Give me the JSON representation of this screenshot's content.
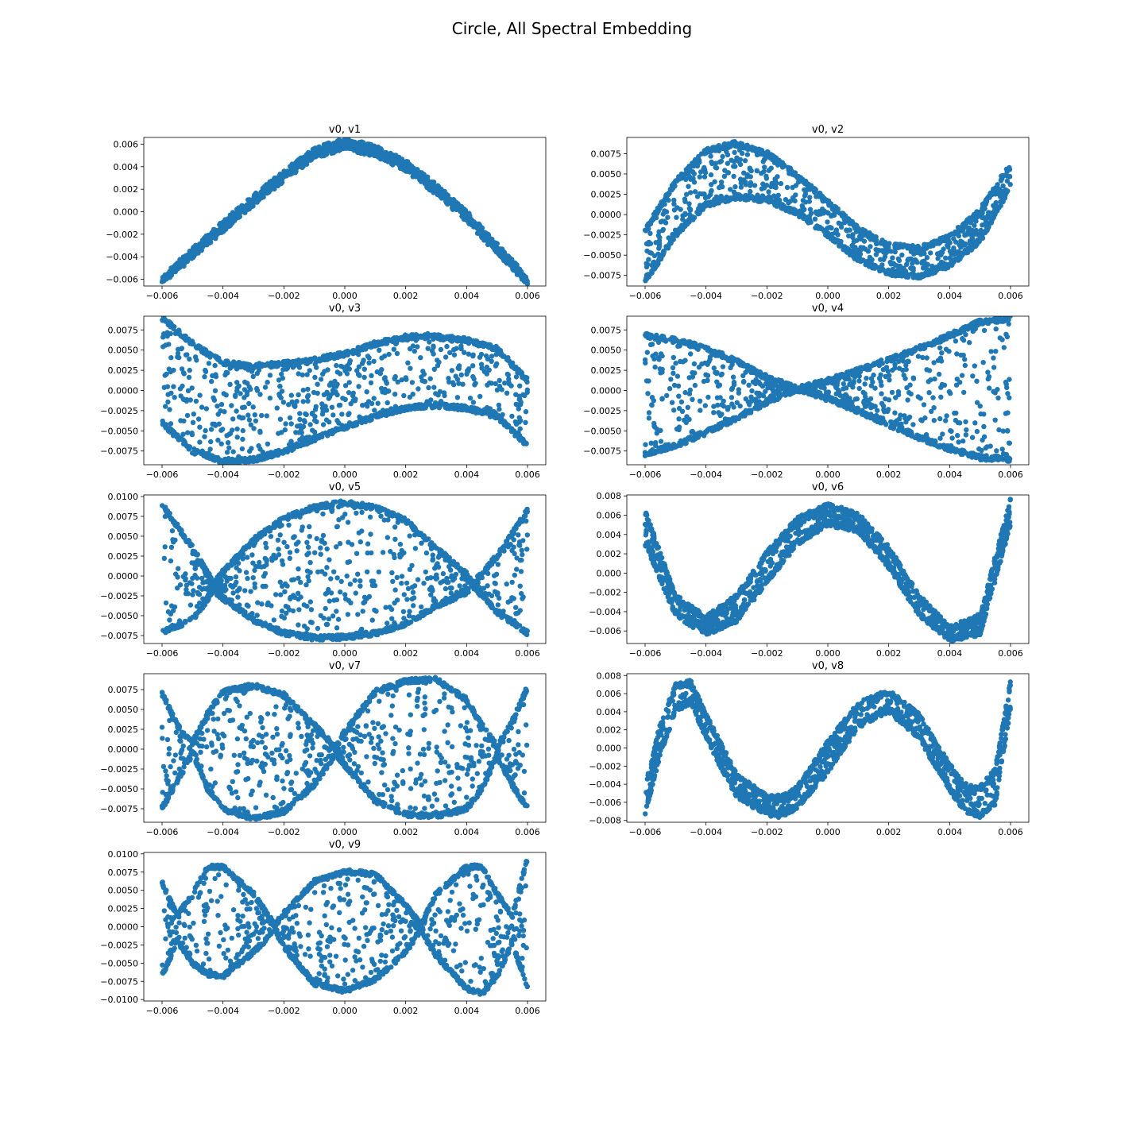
{
  "figure_title": "Circle, All Spectral Embedding",
  "colors": {
    "points": "#1f77b4",
    "axes": "#000000",
    "background": "#ffffff"
  },
  "chart_data": [
    {
      "type": "scatter",
      "title": "v0, v1",
      "xlabel": "",
      "ylabel": "",
      "xlim": [
        -0.0066,
        0.0066
      ],
      "ylim": [
        -0.0066,
        0.0066
      ],
      "xticks": [
        -0.006,
        -0.004,
        -0.002,
        0.0,
        0.002,
        0.004,
        0.006
      ],
      "xtick_labels": [
        "−0.006",
        "−0.004",
        "−0.002",
        "0.000",
        "0.002",
        "0.004",
        "0.006"
      ],
      "yticks": [
        0.006,
        0.004,
        0.002,
        0.0,
        -0.002,
        -0.004,
        -0.006
      ],
      "ytick_labels": [
        "0.006",
        "0.004",
        "0.002",
        "0.000",
        "−0.002",
        "−0.004",
        "−0.006"
      ],
      "curve": {
        "x": [
          -0.006,
          -0.005,
          -0.004,
          -0.003,
          -0.002,
          -0.001,
          0.0,
          0.001,
          0.002,
          0.003,
          0.004,
          0.005,
          0.006
        ],
        "upper": [
          -0.006,
          -0.0035,
          -0.0011,
          0.0012,
          0.0034,
          0.0054,
          0.0063,
          0.0056,
          0.0043,
          0.0022,
          -0.0002,
          -0.0031,
          -0.006
        ],
        "lower": [
          -0.0062,
          -0.0039,
          -0.0015,
          0.0008,
          0.003,
          0.005,
          0.0058,
          0.0052,
          0.0039,
          0.0018,
          -0.0006,
          -0.0035,
          -0.0062
        ]
      },
      "grid": false,
      "legend": "none"
    },
    {
      "type": "scatter",
      "title": "v0, v2",
      "xlabel": "",
      "ylabel": "",
      "xlim": [
        -0.0066,
        0.0066
      ],
      "ylim": [
        -0.0088,
        0.0095
      ],
      "xticks": [
        -0.006,
        -0.004,
        -0.002,
        0.0,
        0.002,
        0.004,
        0.006
      ],
      "xtick_labels": [
        "−0.006",
        "−0.004",
        "−0.002",
        "0.000",
        "0.002",
        "0.004",
        "0.006"
      ],
      "yticks": [
        0.0075,
        0.005,
        0.0025,
        0.0,
        -0.0025,
        -0.005,
        -0.0075
      ],
      "ytick_labels": [
        "0.0075",
        "0.0050",
        "0.0025",
        "0.0000",
        "−0.0025",
        "−0.0050",
        "−0.0075"
      ],
      "curve": {
        "x": [
          -0.006,
          -0.005,
          -0.004,
          -0.003,
          -0.002,
          -0.001,
          0.0,
          0.001,
          0.002,
          0.003,
          0.004,
          0.005,
          0.006
        ],
        "upper": [
          -0.002,
          0.004,
          0.0078,
          0.0088,
          0.0075,
          0.0048,
          0.0015,
          -0.0018,
          -0.0038,
          -0.0042,
          -0.0028,
          0.0005,
          0.0062
        ],
        "lower": [
          -0.0082,
          -0.0025,
          0.0012,
          0.0022,
          0.0018,
          0.0002,
          -0.0025,
          -0.0055,
          -0.0072,
          -0.0076,
          -0.0062,
          -0.0032,
          0.0035
        ]
      },
      "grid": false,
      "legend": "none"
    },
    {
      "type": "scatter",
      "title": "v0, v3",
      "xlabel": "",
      "ylabel": "",
      "xlim": [
        -0.0066,
        0.0066
      ],
      "ylim": [
        -0.0092,
        0.0092
      ],
      "xticks": [
        -0.006,
        -0.004,
        -0.002,
        0.0,
        0.002,
        0.004,
        0.006
      ],
      "xtick_labels": [
        "−0.006",
        "−0.004",
        "−0.002",
        "0.000",
        "0.002",
        "0.004",
        "0.006"
      ],
      "yticks": [
        0.0075,
        0.005,
        0.0025,
        0.0,
        -0.0025,
        -0.005,
        -0.0075
      ],
      "ytick_labels": [
        "0.0075",
        "0.0050",
        "0.0025",
        "0.0000",
        "−0.0025",
        "−0.0050",
        "−0.0075"
      ],
      "curve": {
        "x": [
          -0.006,
          -0.005,
          -0.004,
          -0.003,
          -0.002,
          -0.001,
          0.0,
          0.001,
          0.002,
          0.003,
          0.004,
          0.005,
          0.006
        ],
        "upper": [
          0.009,
          0.0058,
          0.0034,
          0.003,
          0.0033,
          0.0038,
          0.0045,
          0.0058,
          0.0066,
          0.0068,
          0.0062,
          0.0052,
          0.0012
        ],
        "lower": [
          -0.004,
          -0.0075,
          -0.0088,
          -0.0086,
          -0.0075,
          -0.006,
          -0.0045,
          -0.0032,
          -0.0022,
          -0.0018,
          -0.0022,
          -0.0032,
          -0.0068
        ]
      },
      "grid": false,
      "legend": "none"
    },
    {
      "type": "scatter",
      "title": "v0, v4",
      "xlabel": "",
      "ylabel": "",
      "xlim": [
        -0.0066,
        0.0066
      ],
      "ylim": [
        -0.0092,
        0.0092
      ],
      "xticks": [
        -0.006,
        -0.004,
        -0.002,
        0.0,
        0.002,
        0.004,
        0.006
      ],
      "xtick_labels": [
        "−0.006",
        "−0.004",
        "−0.002",
        "0.000",
        "0.002",
        "0.004",
        "0.006"
      ],
      "yticks": [
        0.0075,
        0.005,
        0.0025,
        0.0,
        -0.0025,
        -0.005,
        -0.0075
      ],
      "ytick_labels": [
        "0.0075",
        "0.0050",
        "0.0025",
        "0.0000",
        "−0.0025",
        "−0.0050",
        "−0.0075"
      ],
      "curve": {
        "x": [
          -0.006,
          -0.005,
          -0.004,
          -0.003,
          -0.002,
          -0.001,
          0.0,
          0.001,
          0.002,
          0.003,
          0.004,
          0.005,
          0.006
        ],
        "upper": [
          0.0068,
          0.0062,
          0.0052,
          0.0036,
          0.0016,
          0.0002,
          0.0012,
          0.0025,
          0.0038,
          0.0052,
          0.0068,
          0.0085,
          0.0089
        ],
        "lower": [
          -0.0078,
          -0.0068,
          -0.0052,
          -0.0034,
          -0.0014,
          0.0001,
          -0.001,
          -0.0025,
          -0.0042,
          -0.0058,
          -0.0072,
          -0.0083,
          -0.0085
        ]
      },
      "grid": false,
      "legend": "none"
    },
    {
      "type": "scatter",
      "title": "v0, v5",
      "xlabel": "",
      "ylabel": "",
      "xlim": [
        -0.0066,
        0.0066
      ],
      "ylim": [
        -0.0085,
        0.0102
      ],
      "xticks": [
        -0.006,
        -0.004,
        -0.002,
        0.0,
        0.002,
        0.004,
        0.006
      ],
      "xtick_labels": [
        "−0.006",
        "−0.004",
        "−0.002",
        "0.000",
        "0.002",
        "0.004",
        "0.006"
      ],
      "yticks": [
        0.01,
        0.0075,
        0.005,
        0.0025,
        0.0,
        -0.0025,
        -0.005,
        -0.0075
      ],
      "ytick_labels": [
        "0.0100",
        "0.0075",
        "0.0050",
        "0.0025",
        "0.0000",
        "−0.0025",
        "−0.0050",
        "−0.0075"
      ],
      "curve": {
        "x": [
          -0.006,
          -0.005,
          -0.0043,
          -0.004,
          -0.003,
          -0.002,
          -0.001,
          0.0,
          0.001,
          0.002,
          0.003,
          0.004,
          0.0042,
          0.005,
          0.006
        ],
        "upper": [
          0.009,
          0.0035,
          -0.001,
          0.0005,
          0.0045,
          0.0072,
          0.0087,
          0.0092,
          0.0086,
          0.007,
          0.0035,
          0.0002,
          -0.001,
          0.0025,
          0.0082
        ],
        "lower": [
          -0.007,
          -0.0055,
          -0.0018,
          -0.0028,
          -0.0055,
          -0.0072,
          -0.0078,
          -0.0077,
          -0.0072,
          -0.006,
          -0.0038,
          -0.002,
          -0.0012,
          -0.0045,
          -0.0072
        ]
      },
      "grid": false,
      "legend": "none"
    },
    {
      "type": "scatter",
      "title": "v0, v6",
      "xlabel": "",
      "ylabel": "",
      "xlim": [
        -0.0066,
        0.0066
      ],
      "ylim": [
        -0.0073,
        0.0081
      ],
      "xticks": [
        -0.006,
        -0.004,
        -0.002,
        0.0,
        0.002,
        0.004,
        0.006
      ],
      "xtick_labels": [
        "−0.006",
        "−0.004",
        "−0.002",
        "0.000",
        "0.002",
        "0.004",
        "0.006"
      ],
      "yticks": [
        0.008,
        0.006,
        0.004,
        0.002,
        0.0,
        -0.002,
        -0.004,
        -0.006
      ],
      "ytick_labels": [
        "0.008",
        "0.006",
        "0.004",
        "0.002",
        "0.000",
        "−0.002",
        "−0.004",
        "−0.006"
      ],
      "curve": {
        "x": [
          -0.006,
          -0.005,
          -0.004,
          -0.003,
          -0.002,
          -0.001,
          0.0,
          0.001,
          0.002,
          0.003,
          0.004,
          0.005,
          0.006
        ],
        "upper": [
          0.0063,
          -0.0025,
          -0.0047,
          -0.0025,
          0.002,
          0.0055,
          0.007,
          0.006,
          0.0025,
          -0.0025,
          -0.0058,
          -0.0045,
          0.0075
        ],
        "lower": [
          0.0032,
          -0.0042,
          -0.0062,
          -0.0048,
          -0.0008,
          0.0032,
          0.0052,
          0.0045,
          0.0008,
          -0.0042,
          -0.0068,
          -0.0062,
          0.0052
        ]
      },
      "grid": false,
      "legend": "none"
    },
    {
      "type": "scatter",
      "title": "v0, v7",
      "xlabel": "",
      "ylabel": "",
      "xlim": [
        -0.0066,
        0.0066
      ],
      "ylim": [
        -0.0092,
        0.0095
      ],
      "xticks": [
        -0.006,
        -0.004,
        -0.002,
        0.0,
        0.002,
        0.004,
        0.006
      ],
      "xtick_labels": [
        "−0.006",
        "−0.004",
        "−0.002",
        "0.000",
        "0.002",
        "0.004",
        "0.006"
      ],
      "yticks": [
        0.0075,
        0.005,
        0.0025,
        0.0,
        -0.0025,
        -0.005,
        -0.0075
      ],
      "ytick_labels": [
        "0.0075",
        "0.0050",
        "0.0025",
        "0.0000",
        "−0.0025",
        "−0.0050",
        "−0.0075"
      ],
      "curve": {
        "x": [
          -0.006,
          -0.0055,
          -0.005,
          -0.0045,
          -0.004,
          -0.003,
          -0.002,
          -0.001,
          -0.0003,
          0.0,
          0.001,
          0.002,
          0.003,
          0.004,
          0.0045,
          0.005,
          0.0055,
          0.006
        ],
        "upper": [
          0.007,
          0.003,
          0.0008,
          0.0045,
          0.0072,
          0.008,
          0.0068,
          0.003,
          0.0002,
          0.0022,
          0.0072,
          0.0086,
          0.0088,
          0.0062,
          0.003,
          0.0003,
          0.0035,
          0.0078
        ],
        "lower": [
          -0.0075,
          -0.004,
          -0.0005,
          -0.005,
          -0.0075,
          -0.0088,
          -0.0078,
          -0.0045,
          -0.0005,
          -0.002,
          -0.0065,
          -0.0082,
          -0.0084,
          -0.0075,
          -0.005,
          -0.0008,
          -0.0045,
          -0.0075
        ]
      },
      "grid": false,
      "legend": "none"
    },
    {
      "type": "scatter",
      "title": "v0, v8",
      "xlabel": "",
      "ylabel": "",
      "xlim": [
        -0.0066,
        0.0066
      ],
      "ylim": [
        -0.0082,
        0.0082
      ],
      "xticks": [
        -0.006,
        -0.004,
        -0.002,
        0.0,
        0.002,
        0.004,
        0.006
      ],
      "xtick_labels": [
        "−0.006",
        "−0.004",
        "−0.002",
        "0.000",
        "0.002",
        "0.004",
        "0.006"
      ],
      "yticks": [
        0.008,
        0.006,
        0.004,
        0.002,
        0.0,
        -0.002,
        -0.004,
        -0.006,
        -0.008
      ],
      "ytick_labels": [
        "0.008",
        "0.006",
        "0.004",
        "0.002",
        "0.000",
        "−0.002",
        "−0.004",
        "−0.006",
        "−0.008"
      ],
      "curve": {
        "x": [
          -0.006,
          -0.0055,
          -0.005,
          -0.0045,
          -0.004,
          -0.003,
          -0.002,
          -0.0015,
          -0.001,
          0.0,
          0.001,
          0.002,
          0.003,
          0.004,
          0.0045,
          0.005,
          0.0055,
          0.006
        ],
        "upper": [
          -0.0045,
          0.0025,
          0.0068,
          0.0072,
          0.0035,
          -0.003,
          -0.0055,
          -0.0055,
          -0.0045,
          0.0005,
          0.0048,
          0.0062,
          0.0035,
          -0.002,
          -0.0042,
          -0.0045,
          -0.0025,
          0.0072
        ],
        "lower": [
          -0.0072,
          -0.0005,
          0.0042,
          0.0052,
          0.0012,
          -0.0052,
          -0.0072,
          -0.0074,
          -0.0064,
          -0.0025,
          0.0025,
          0.0042,
          0.0012,
          -0.0045,
          -0.0068,
          -0.0074,
          -0.006,
          0.0045
        ]
      },
      "grid": false,
      "legend": "none"
    },
    {
      "type": "scatter",
      "title": "v0, v9",
      "xlabel": "",
      "ylabel": "",
      "xlim": [
        -0.0066,
        0.0066
      ],
      "ylim": [
        -0.0102,
        0.0102
      ],
      "xticks": [
        -0.006,
        -0.004,
        -0.002,
        0.0,
        0.002,
        0.004,
        0.006
      ],
      "xtick_labels": [
        "−0.006",
        "−0.004",
        "−0.002",
        "0.000",
        "0.002",
        "0.004",
        "0.006"
      ],
      "yticks": [
        0.01,
        0.0075,
        0.005,
        0.0025,
        0.0,
        -0.0025,
        -0.005,
        -0.0075,
        -0.01
      ],
      "ytick_labels": [
        "0.0100",
        "0.0075",
        "0.0050",
        "0.0025",
        "0.0000",
        "−0.0025",
        "−0.0050",
        "−0.0075",
        "−0.0100"
      ],
      "curve": {
        "x": [
          -0.006,
          -0.0055,
          -0.005,
          -0.0045,
          -0.004,
          -0.003,
          -0.0023,
          -0.002,
          -0.001,
          0.0,
          0.001,
          0.002,
          0.0025,
          0.003,
          0.004,
          0.0045,
          0.005,
          0.0055,
          0.006
        ],
        "upper": [
          0.006,
          0.0015,
          0.0045,
          0.0082,
          0.0082,
          0.0045,
          0.0002,
          0.0018,
          0.0062,
          0.0076,
          0.0072,
          0.003,
          0.0002,
          0.0045,
          0.0082,
          0.0082,
          0.0045,
          0.0015,
          0.0095
        ],
        "lower": [
          -0.0068,
          -0.002,
          -0.005,
          -0.0065,
          -0.0068,
          -0.0035,
          -0.0005,
          -0.0028,
          -0.0078,
          -0.0088,
          -0.0072,
          -0.0035,
          -0.0005,
          -0.004,
          -0.0085,
          -0.0092,
          -0.0068,
          -0.0022,
          -0.0085
        ]
      },
      "grid": false,
      "legend": "none"
    }
  ]
}
